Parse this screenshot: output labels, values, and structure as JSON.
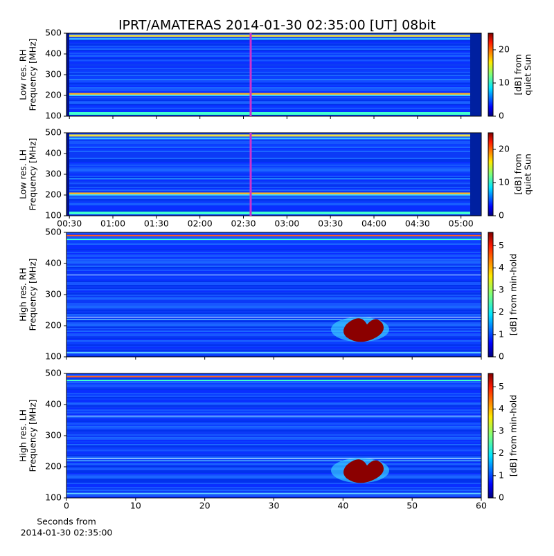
{
  "title": "IPRT/AMATERAS 2014-01-30 02:35:00 [UT]   08bit",
  "chart_data": [
    {
      "type": "heatmap",
      "ylabel": [
        "Low res. RH",
        "Frequency [MHz]"
      ],
      "ylim": [
        100,
        500
      ],
      "yticks": [
        100,
        200,
        300,
        400,
        500
      ],
      "xlim": [
        28,
        314
      ],
      "xticks": [
        30,
        60,
        90,
        120,
        150,
        180,
        210,
        240,
        270,
        300
      ],
      "xtick_labels": false,
      "marker_x": 155,
      "marker_color": "#cc33cc",
      "clim": [
        0,
        25
      ],
      "cticks": [
        0,
        10,
        20
      ],
      "clabel": [
        "[dB] from",
        "quiet Sun"
      ]
    },
    {
      "type": "heatmap",
      "ylabel": [
        "Low res. LH",
        "Frequency [MHz]"
      ],
      "ylim": [
        100,
        500
      ],
      "yticks": [
        100,
        200,
        300,
        400,
        500
      ],
      "xlim": [
        28,
        314
      ],
      "xticks": [
        {
          "value": 30,
          "label": "00:30"
        },
        {
          "value": 60,
          "label": "01:00"
        },
        {
          "value": 90,
          "label": "01:30"
        },
        {
          "value": 120,
          "label": "02:00"
        },
        {
          "value": 150,
          "label": "02:30"
        },
        {
          "value": 180,
          "label": "03:00"
        },
        {
          "value": 210,
          "label": "03:30"
        },
        {
          "value": 240,
          "label": "04:00"
        },
        {
          "value": 270,
          "label": "04:30"
        },
        {
          "value": 300,
          "label": "05:00"
        }
      ],
      "xtick_labels": true,
      "marker_x": 155,
      "marker_color": "#cc33cc",
      "clim": [
        0,
        25
      ],
      "cticks": [
        0,
        10,
        20
      ],
      "clabel": [
        "[dB] from",
        "quiet Sun"
      ]
    },
    {
      "type": "heatmap",
      "ylabel": [
        "High res. RH",
        "Frequency [MHz]"
      ],
      "ylim": [
        100,
        500
      ],
      "yticks": [
        100,
        200,
        300,
        400,
        500
      ],
      "xlim": [
        0,
        60
      ],
      "xticks": [
        0,
        10,
        20,
        30,
        40,
        50,
        60
      ],
      "xtick_labels": false,
      "clim": [
        0,
        5.6
      ],
      "cticks": [
        0,
        1,
        2,
        3,
        4,
        5
      ],
      "clabel": [
        "[dB] from min-hold"
      ]
    },
    {
      "type": "heatmap",
      "ylabel": [
        "High res. LH",
        "Frequency [MHz]"
      ],
      "ylim": [
        100,
        500
      ],
      "yticks": [
        100,
        200,
        300,
        400,
        500
      ],
      "xlim": [
        0,
        60
      ],
      "xticks": [
        0,
        10,
        20,
        30,
        40,
        50,
        60
      ],
      "xtick_labels": true,
      "xlabel": [
        "Seconds from",
        "2014-01-30 02:35:00"
      ],
      "clim": [
        0,
        5.6
      ],
      "cticks": [
        0,
        1,
        2,
        3,
        4,
        5
      ],
      "clabel": [
        "[dB] from min-hold"
      ]
    }
  ]
}
